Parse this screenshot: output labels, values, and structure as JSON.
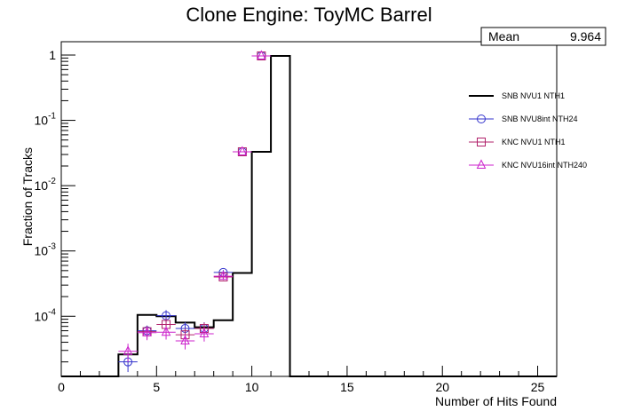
{
  "chart_data": {
    "type": "histogram",
    "title": "Clone Engine: ToyMC Barrel",
    "xlabel": "Number of Hits Found",
    "ylabel": "Fraction of Tracks",
    "xlim": [
      0,
      26
    ],
    "ylim": [
      1.2e-05,
      1.6
    ],
    "yscale": "log",
    "grid": false,
    "legend_position": "right",
    "stats": {
      "label": "Mean",
      "value": "9.964"
    },
    "x_ticks": [
      0,
      5,
      10,
      15,
      20,
      25
    ],
    "y_ticks": [
      {
        "value": 1,
        "base": "1",
        "exp": ""
      },
      {
        "value": 0.1,
        "base": "10",
        "exp": "-1"
      },
      {
        "value": 0.01,
        "base": "10",
        "exp": "-2"
      },
      {
        "value": 0.001,
        "base": "10",
        "exp": "-3"
      },
      {
        "value": 0.0001,
        "base": "10",
        "exp": "-4"
      }
    ],
    "bin_edges": [
      0,
      1,
      2,
      3,
      4,
      5,
      6,
      7,
      8,
      9,
      10,
      11,
      12,
      13,
      14,
      15,
      16,
      17,
      18,
      19,
      20,
      21,
      22,
      23,
      24,
      25,
      26
    ],
    "series": [
      {
        "name": "SNB NVU1 NTH1",
        "style": "line",
        "color": "#000000",
        "values": [
          0,
          0,
          0,
          2.6e-05,
          0.000105,
          0.0001,
          8e-05,
          6.8e-05,
          8.7e-05,
          0.00046,
          0.033,
          0.97,
          0,
          0,
          0,
          0,
          0,
          0,
          0,
          0,
          0,
          0,
          0,
          0,
          0,
          0
        ]
      },
      {
        "name": "SNB NVU8int NTH24",
        "style": "marker",
        "marker": "circle",
        "color": "#3333cc",
        "points": [
          {
            "x": 3.5,
            "y": 2e-05,
            "err": 6e-06
          },
          {
            "x": 4.5,
            "y": 6e-05,
            "err": 1.2e-05
          },
          {
            "x": 5.5,
            "y": 0.000102,
            "err": 2.2e-05
          },
          {
            "x": 6.5,
            "y": 6.5e-05,
            "err": 1.6e-05
          },
          {
            "x": 7.5,
            "y": 6.5e-05,
            "err": 1.6e-05
          },
          {
            "x": 8.5,
            "y": 0.00047,
            "err": 4e-05
          },
          {
            "x": 9.5,
            "y": 0.033,
            "err": 0.0005
          },
          {
            "x": 10.5,
            "y": 0.97,
            "err": 0.005
          }
        ]
      },
      {
        "name": "KNC NVU1 NTH1",
        "style": "marker",
        "marker": "square",
        "color": "#b0206a",
        "points": [
          {
            "x": 4.5,
            "y": 5.8e-05,
            "err": 1.3e-05
          },
          {
            "x": 5.5,
            "y": 7.5e-05,
            "err": 1.6e-05
          },
          {
            "x": 6.5,
            "y": 5.2e-05,
            "err": 1.3e-05
          },
          {
            "x": 7.5,
            "y": 6.5e-05,
            "err": 1.5e-05
          },
          {
            "x": 8.5,
            "y": 0.0004,
            "err": 4e-05
          },
          {
            "x": 9.5,
            "y": 0.033,
            "err": 0.0005
          },
          {
            "x": 10.5,
            "y": 0.97,
            "err": 0.005
          }
        ]
      },
      {
        "name": "KNC NVU16int NTH240",
        "style": "marker",
        "marker": "triangle",
        "color": "#cc22cc",
        "points": [
          {
            "x": 3.5,
            "y": 2.9e-05,
            "err": 9e-06
          },
          {
            "x": 4.5,
            "y": 5.6e-05,
            "err": 1.3e-05
          },
          {
            "x": 5.5,
            "y": 5.7e-05,
            "err": 1.3e-05
          },
          {
            "x": 6.5,
            "y": 4.2e-05,
            "err": 1.1e-05
          },
          {
            "x": 7.5,
            "y": 5.4e-05,
            "err": 1.3e-05
          },
          {
            "x": 8.5,
            "y": 0.00041,
            "err": 4e-05
          },
          {
            "x": 9.5,
            "y": 0.033,
            "err": 0.0005
          },
          {
            "x": 10.5,
            "y": 0.97,
            "err": 0.005
          }
        ]
      }
    ]
  }
}
